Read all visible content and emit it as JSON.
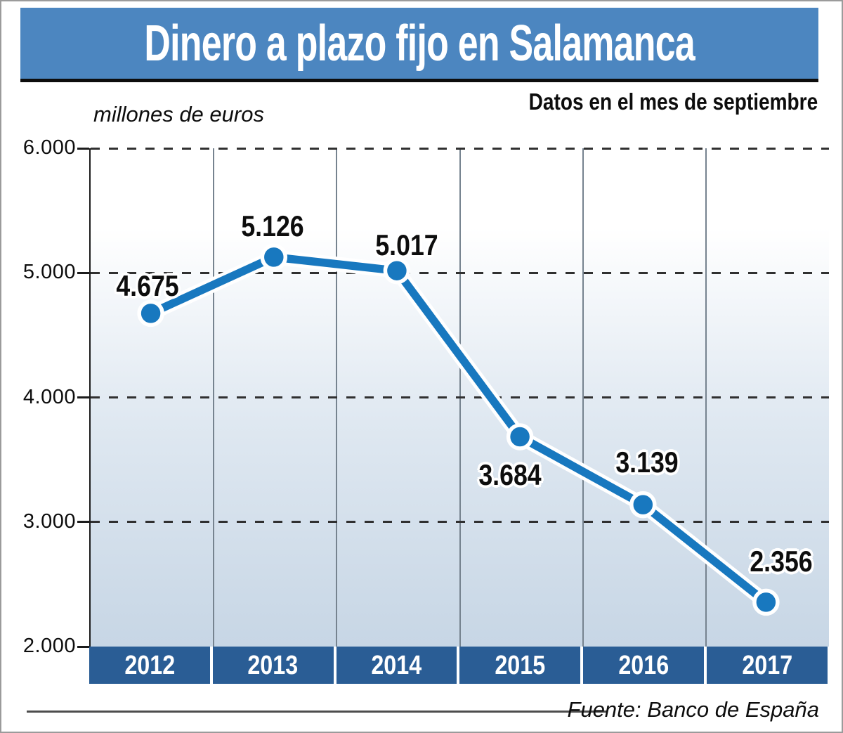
{
  "header": {
    "title": "Dinero a plazo fijo en Salamanca"
  },
  "subtitle": "Datos en el mes de septiembre",
  "unit_label": "millones de euros",
  "source": "Fuente: Banco de España",
  "chart_data": {
    "type": "line",
    "title": "Dinero a plazo fijo en Salamanca",
    "subtitle": "Datos en el mes de septiembre",
    "unit": "millones de euros",
    "source": "Fuente: Banco de España",
    "categories": [
      "2012",
      "2013",
      "2014",
      "2015",
      "2016",
      "2017"
    ],
    "values": [
      4675,
      5126,
      5017,
      3684,
      3139,
      2356
    ],
    "point_labels": [
      "4.675",
      "5.126",
      "5.017",
      "3.684",
      "3.139",
      "2.356"
    ],
    "y_tick_values": [
      6000,
      5000,
      4000,
      3000,
      2000
    ],
    "y_ticks": [
      "6.000",
      "5.000",
      "4.000",
      "3.000",
      "2.000"
    ],
    "ylim": [
      2000,
      6000
    ],
    "grid": "dashed horizontal gridlines, solid vertical column separators",
    "legend": "none",
    "colors": {
      "line": "#1878BF",
      "point": "#1878BF",
      "point_outline": "#ffffff",
      "header_bar": "#4C86C0",
      "year_bar": "#2A5D95",
      "plot_gradient_top": "#ffffff",
      "plot_gradient_bottom": "#C7D6E5"
    }
  }
}
